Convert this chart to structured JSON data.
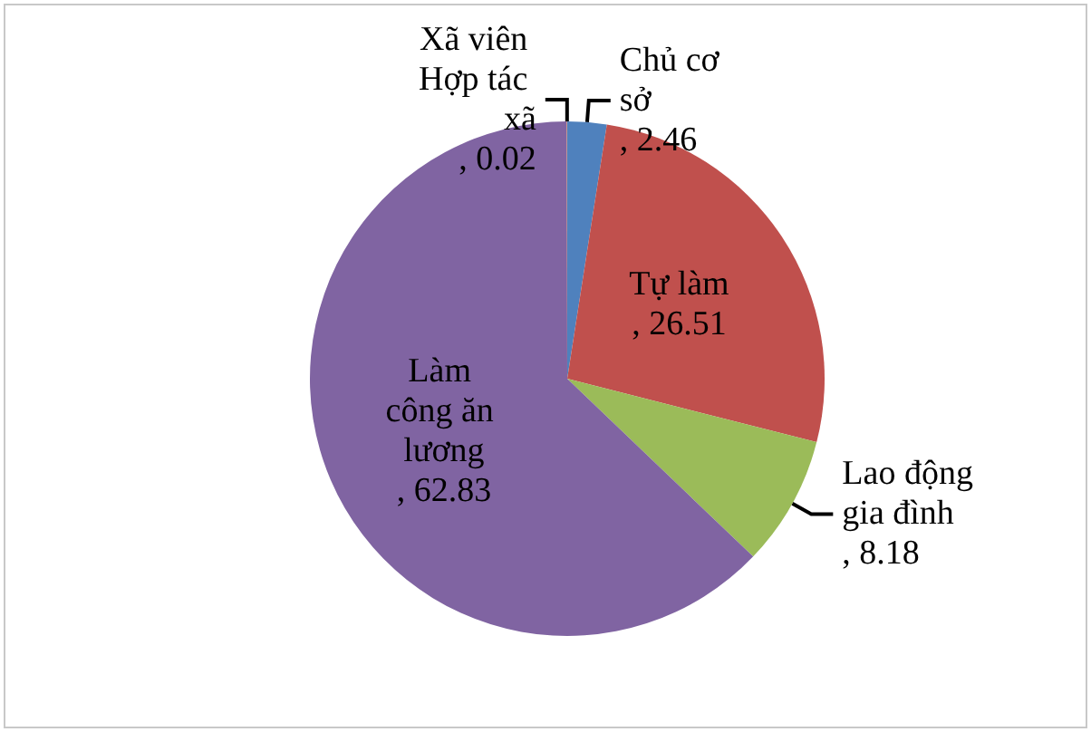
{
  "chart_data": {
    "type": "pie",
    "categories": [
      "Chủ cơ sở",
      "Tự làm",
      "Lao động gia đình",
      "Làm công ăn lương",
      "Xã viên Hợp tác xã"
    ],
    "values": [
      2.46,
      26.51,
      8.18,
      62.83,
      0.02
    ],
    "colors": [
      "#4f81bd",
      "#c0504d",
      "#9bbb59",
      "#8064a2",
      "#f79646"
    ],
    "value_labels": [
      ", 2.46",
      ", 26.51",
      ", 8.18",
      ", 62.83",
      ", 0.02"
    ],
    "legend": false
  }
}
